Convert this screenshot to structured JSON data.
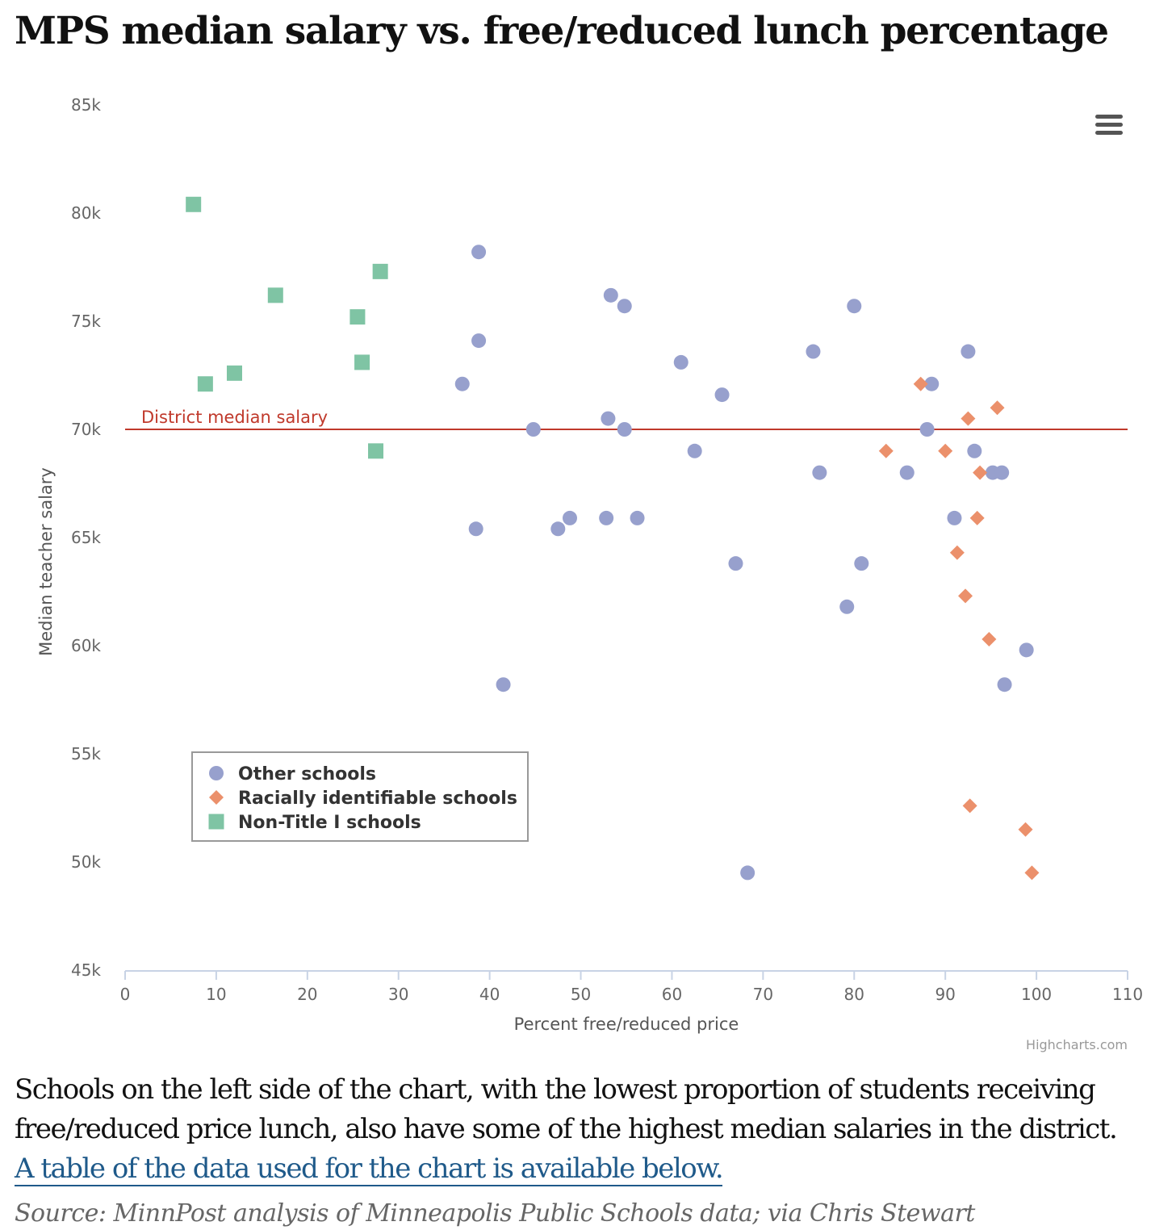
{
  "headline": "MPS median salary vs. free/reduced lunch percentage",
  "chart_data": {
    "type": "scatter",
    "xlabel": "Percent free/reduced price",
    "ylabel": "Median teacher salary",
    "xlim": [
      0,
      110
    ],
    "ylim": [
      45000,
      85000
    ],
    "x_ticks": [
      0,
      10,
      20,
      30,
      40,
      50,
      60,
      70,
      80,
      90,
      100,
      110
    ],
    "x_tick_labels": [
      "0",
      "10",
      "20",
      "30",
      "40",
      "50",
      "60",
      "70",
      "80",
      "90",
      "100",
      "110"
    ],
    "y_ticks": [
      45000,
      50000,
      55000,
      60000,
      65000,
      70000,
      75000,
      80000,
      85000
    ],
    "y_tick_labels": [
      "45k",
      "50k",
      "55k",
      "60k",
      "65k",
      "70k",
      "75k",
      "80k",
      "85k"
    ],
    "plot_lines": [
      {
        "label": "District median salary",
        "value": 70000,
        "color": "#c0392b"
      }
    ],
    "legend_position": "lower-left",
    "credits": "Highcharts.com",
    "series": [
      {
        "name": "Other schools",
        "marker": "circle",
        "color": "#97a0cd",
        "points": [
          [
            37.0,
            72100
          ],
          [
            38.5,
            65400
          ],
          [
            38.8,
            78200
          ],
          [
            38.8,
            74100
          ],
          [
            41.5,
            58200
          ],
          [
            44.8,
            70000
          ],
          [
            47.5,
            65400
          ],
          [
            48.8,
            65900
          ],
          [
            52.8,
            65900
          ],
          [
            53.0,
            70500
          ],
          [
            53.3,
            76200
          ],
          [
            54.8,
            70000
          ],
          [
            54.8,
            75700
          ],
          [
            56.2,
            65900
          ],
          [
            61.0,
            73100
          ],
          [
            62.5,
            69000
          ],
          [
            65.5,
            71600
          ],
          [
            67.0,
            63800
          ],
          [
            68.3,
            49500
          ],
          [
            75.5,
            73600
          ],
          [
            76.2,
            68000
          ],
          [
            79.2,
            61800
          ],
          [
            80.0,
            75700
          ],
          [
            80.8,
            63800
          ],
          [
            85.8,
            68000
          ],
          [
            88.0,
            70000
          ],
          [
            88.5,
            72100
          ],
          [
            91.0,
            65900
          ],
          [
            92.5,
            73600
          ],
          [
            93.2,
            69000
          ],
          [
            95.2,
            68000
          ],
          [
            96.2,
            68000
          ],
          [
            96.5,
            58200
          ],
          [
            98.9,
            59800
          ]
        ]
      },
      {
        "name": "Racially identifiable schools",
        "marker": "diamond",
        "color": "#eb906b",
        "points": [
          [
            83.5,
            69000
          ],
          [
            87.3,
            72100
          ],
          [
            90.0,
            69000
          ],
          [
            91.3,
            64300
          ],
          [
            92.2,
            62300
          ],
          [
            92.5,
            70500
          ],
          [
            92.7,
            52600
          ],
          [
            93.5,
            65900
          ],
          [
            93.8,
            68000
          ],
          [
            94.8,
            60300
          ],
          [
            95.7,
            71000
          ],
          [
            98.8,
            51500
          ],
          [
            99.5,
            49500
          ]
        ]
      },
      {
        "name": "Non-Title I schools",
        "marker": "square",
        "color": "#7fc4a4",
        "points": [
          [
            7.5,
            80400
          ],
          [
            8.8,
            72100
          ],
          [
            12.0,
            72600
          ],
          [
            16.5,
            76200
          ],
          [
            25.5,
            75200
          ],
          [
            26.0,
            73100
          ],
          [
            27.5,
            69000
          ],
          [
            28.0,
            77300
          ]
        ]
      }
    ]
  },
  "caption": {
    "text": "Schools on the left side of the chart, with the lowest proportion of students receiving free/reduced price lunch, also have some of the highest median salaries in the district. ",
    "link_text": "A table of the data used for the chart is available below."
  },
  "source": "Source: MinnPost analysis of Minneapolis Public Schools data; via Chris Stewart"
}
